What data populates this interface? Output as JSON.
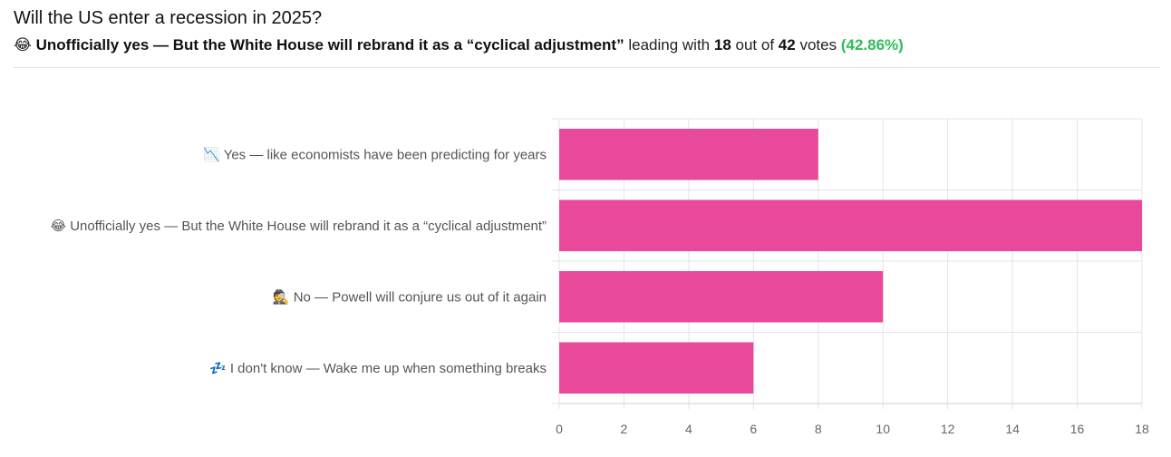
{
  "header": {
    "question": "Will the US enter a recession in 2025?",
    "leader_emoji": "😂",
    "leader_label": "Unofficially yes — But the White House will rebrand it as a “cyclical adjustment”",
    "leading_with_text": "leading with",
    "leader_votes": "18",
    "out_of_text": "out of",
    "total_votes": "42",
    "votes_text": "votes",
    "leader_percent": "(42.86%)"
  },
  "colors": {
    "bar": "#e8499a",
    "percent": "#2ebd59",
    "grid": "#e4e4e4"
  },
  "chart_data": {
    "type": "bar",
    "orientation": "horizontal",
    "categories": [
      "📉 Yes — like economists have been predicting for years",
      "😂 Unofficially yes — But the White House will rebrand it as a “cyclical adjustment”",
      "🕵️ No — Powell will conjure us out of it again",
      "💤 I don't know — Wake me up when something breaks"
    ],
    "values": [
      8,
      18,
      10,
      6
    ],
    "xlim": [
      0,
      18
    ],
    "xticks": [
      0,
      2,
      4,
      6,
      8,
      10,
      12,
      14,
      16,
      18
    ],
    "grid": true,
    "title": "",
    "xlabel": "",
    "ylabel": ""
  }
}
